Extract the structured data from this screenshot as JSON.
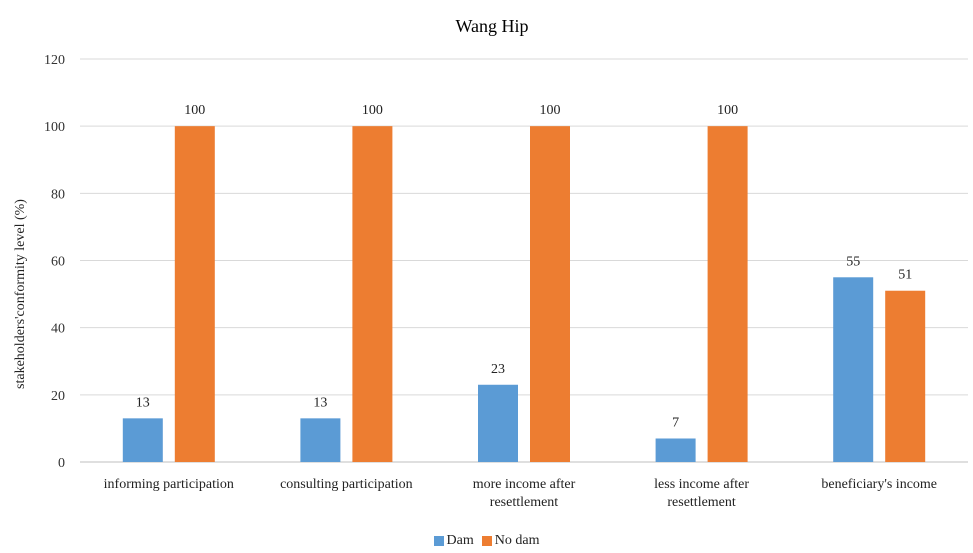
{
  "chart_data": {
    "type": "bar",
    "title": "Wang Hip",
    "xlabel": "",
    "ylabel": "stakeholders'conformity level (%)",
    "ylim": [
      0,
      120
    ],
    "yticks": [
      0,
      20,
      40,
      60,
      80,
      100,
      120
    ],
    "grid": true,
    "legend_position": "bottom",
    "categories": [
      [
        "informing participation"
      ],
      [
        "consulting participation"
      ],
      [
        "more income after",
        "resettlement"
      ],
      [
        "less income after",
        "resettlement"
      ],
      [
        "beneficiary's income"
      ]
    ],
    "series": [
      {
        "name": "Dam",
        "color": "#5B9BD5",
        "values": [
          13,
          13,
          23,
          7,
          55
        ]
      },
      {
        "name": "No dam",
        "color": "#ED7D31",
        "values": [
          100,
          100,
          100,
          100,
          51
        ]
      }
    ]
  }
}
